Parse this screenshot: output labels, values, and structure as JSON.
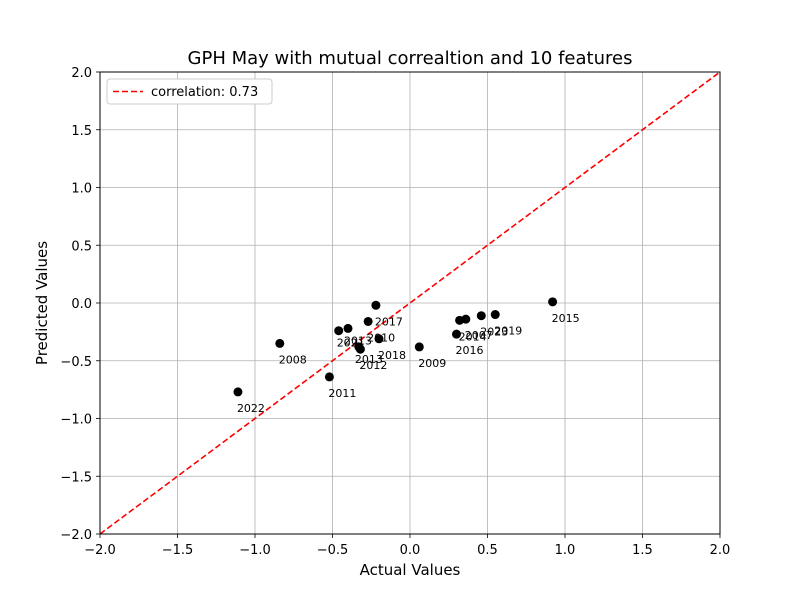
{
  "chart_data": {
    "type": "scatter",
    "title": "GPH May with mutual correaltion and 10 features",
    "xlabel": "Actual Values",
    "ylabel": "Predicted Values",
    "xlim": [
      -2.0,
      2.0
    ],
    "ylim": [
      -2.0,
      2.0
    ],
    "xticks": [
      "−2.0",
      "−1.5",
      "−1.0",
      "−0.5",
      "0.0",
      "0.5",
      "1.0",
      "1.5",
      "2.0"
    ],
    "yticks": [
      "−2.0",
      "−1.5",
      "−1.0",
      "−0.5",
      "0.0",
      "0.5",
      "1.0",
      "1.5",
      "2.0"
    ],
    "xtick_values": [
      -2.0,
      -1.5,
      -1.0,
      -0.5,
      0.0,
      0.5,
      1.0,
      1.5,
      2.0
    ],
    "ytick_values": [
      -2.0,
      -1.5,
      -1.0,
      -0.5,
      0.0,
      0.5,
      1.0,
      1.5,
      2.0
    ],
    "grid": true,
    "legend_position": "top-left",
    "legend": [
      {
        "label": "correlation: 0.73",
        "color": "#ff0000",
        "style": "dashed"
      }
    ],
    "reference_line": {
      "x": [
        -2.0,
        2.0
      ],
      "y": [
        -2.0,
        2.0
      ],
      "color": "#ff0000"
    },
    "point_color": "#000000",
    "points": [
      {
        "x": -1.11,
        "y": -0.77,
        "label": "2022"
      },
      {
        "x": -0.84,
        "y": -0.35,
        "label": "2008"
      },
      {
        "x": -0.52,
        "y": -0.64,
        "label": "2011"
      },
      {
        "x": -0.46,
        "y": -0.24,
        "label": "2021"
      },
      {
        "x": -0.4,
        "y": -0.22,
        "label": "2013"
      },
      {
        "x": -0.33,
        "y": -0.38,
        "label": "2013"
      },
      {
        "x": -0.32,
        "y": -0.4,
        "label": "2012"
      },
      {
        "x": -0.27,
        "y": -0.16,
        "label": "2010"
      },
      {
        "x": -0.22,
        "y": -0.02,
        "label": "2017"
      },
      {
        "x": -0.2,
        "y": -0.31,
        "label": "2018"
      },
      {
        "x": 0.06,
        "y": -0.38,
        "label": "2009"
      },
      {
        "x": 0.3,
        "y": -0.27,
        "label": "2016"
      },
      {
        "x": 0.32,
        "y": -0.15,
        "label": "2014"
      },
      {
        "x": 0.36,
        "y": -0.14,
        "label": "2007"
      },
      {
        "x": 0.46,
        "y": -0.11,
        "label": "2023"
      },
      {
        "x": 0.55,
        "y": -0.1,
        "label": "2019"
      },
      {
        "x": 0.92,
        "y": 0.01,
        "label": "2015"
      }
    ],
    "label_offsets": {
      "2021": [
        -2,
        16
      ],
      "2013": [
        -4,
        16
      ],
      "2020": [
        -12,
        14
      ]
    }
  }
}
